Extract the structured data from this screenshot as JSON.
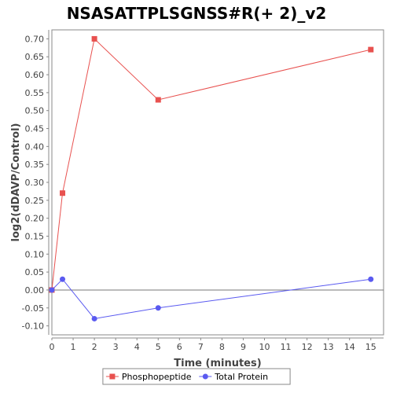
{
  "chart_data": {
    "type": "line",
    "title": "NSASATTPLSGNSS#R(+ 2)_v2",
    "xlabel": "Time (minutes)",
    "ylabel": "log2(dDAVP/Control)",
    "xlim": [
      0,
      15.6
    ],
    "ylim": [
      -0.125,
      0.725
    ],
    "xticks": [
      0,
      1,
      2,
      3,
      4,
      5,
      6,
      7,
      8,
      9,
      10,
      11,
      12,
      13,
      14,
      15
    ],
    "yticks": [
      -0.1,
      -0.05,
      0.0,
      0.05,
      0.1,
      0.15,
      0.2,
      0.25,
      0.3,
      0.35,
      0.4,
      0.45,
      0.5,
      0.55,
      0.6,
      0.65,
      0.7
    ],
    "ytick_labels": [
      "-0.10",
      "-0.05",
      "0.00",
      "0.05",
      "0.10",
      "0.15",
      "0.20",
      "0.25",
      "0.30",
      "0.35",
      "0.40",
      "0.45",
      "0.50",
      "0.55",
      "0.60",
      "0.65",
      "0.70"
    ],
    "zero_line": true,
    "grid": false,
    "legend_position": "bottom",
    "series": [
      {
        "name": "Phosphopeptide",
        "color": "#e8514f",
        "marker": "square",
        "x": [
          0,
          0.5,
          2,
          5,
          15
        ],
        "y": [
          0.0,
          0.27,
          0.7,
          0.53,
          0.67
        ]
      },
      {
        "name": "Total Protein",
        "color": "#5a5af0",
        "marker": "circle",
        "x": [
          0,
          0.5,
          2,
          5,
          15
        ],
        "y": [
          0.0,
          0.03,
          -0.08,
          -0.05,
          0.03
        ]
      }
    ]
  }
}
